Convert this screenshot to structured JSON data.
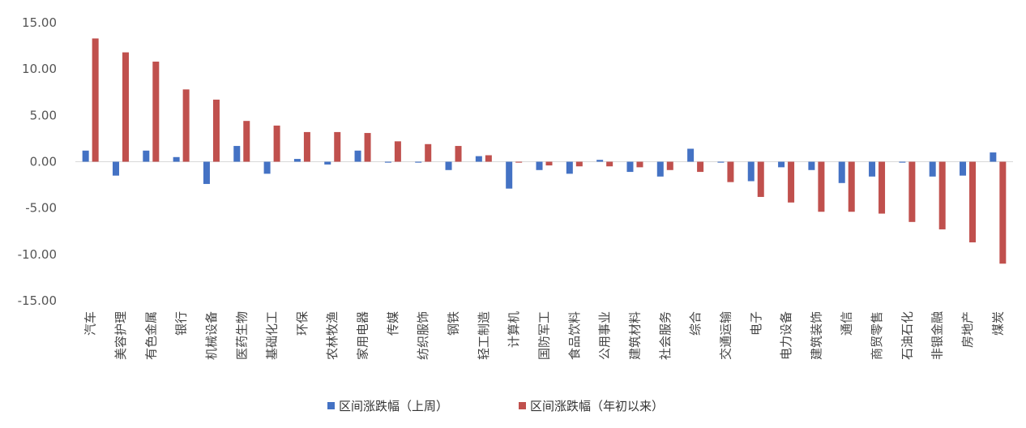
{
  "chart_data": {
    "type": "bar",
    "title": "",
    "xlabel": "",
    "ylabel": "",
    "ylim": [
      -15,
      15
    ],
    "yticks": [
      15,
      10,
      5,
      0,
      -5,
      -10,
      -15
    ],
    "ytick_labels": [
      "15.00",
      "10.00",
      "5.00",
      "0.00",
      "-5.00",
      "-10.00",
      "-15.00"
    ],
    "grid": false,
    "legend_position": "bottom",
    "categories": [
      "汽车",
      "美容护理",
      "有色金属",
      "银行",
      "机械设备",
      "医药生物",
      "基础化工",
      "环保",
      "农林牧渔",
      "家用电器",
      "传媒",
      "纺织服饰",
      "钢铁",
      "轻工制造",
      "计算机",
      "国防军工",
      "食品饮料",
      "公用事业",
      "建筑材料",
      "社会服务",
      "综合",
      "交通运输",
      "电子",
      "电力设备",
      "建筑装饰",
      "通信",
      "商贸零售",
      "石油石化",
      "非银金融",
      "房地产",
      "煤炭"
    ],
    "series": [
      {
        "name": "区间涨跌幅（上周）",
        "color": "#4472c4",
        "values": [
          1.2,
          -1.5,
          1.2,
          0.5,
          -2.4,
          1.7,
          -1.3,
          0.3,
          -0.3,
          1.2,
          -0.1,
          -0.1,
          -0.9,
          0.6,
          -2.9,
          -0.9,
          -1.3,
          0.2,
          -1.1,
          -1.6,
          1.4,
          -0.1,
          -2.1,
          -0.6,
          -0.9,
          -2.3,
          -1.6,
          -0.1,
          -1.6,
          -1.5,
          1.0
        ]
      },
      {
        "name": "区间涨跌幅（年初以来）",
        "color": "#c0504d",
        "values": [
          13.3,
          11.8,
          10.8,
          7.8,
          6.7,
          4.4,
          3.9,
          3.2,
          3.2,
          3.1,
          2.2,
          1.9,
          1.7,
          0.7,
          -0.1,
          -0.4,
          -0.5,
          -0.5,
          -0.6,
          -0.9,
          -1.1,
          -2.2,
          -3.8,
          -4.4,
          -5.4,
          -5.4,
          -5.6,
          -6.5,
          -7.3,
          -8.7,
          -11.0
        ]
      }
    ]
  }
}
